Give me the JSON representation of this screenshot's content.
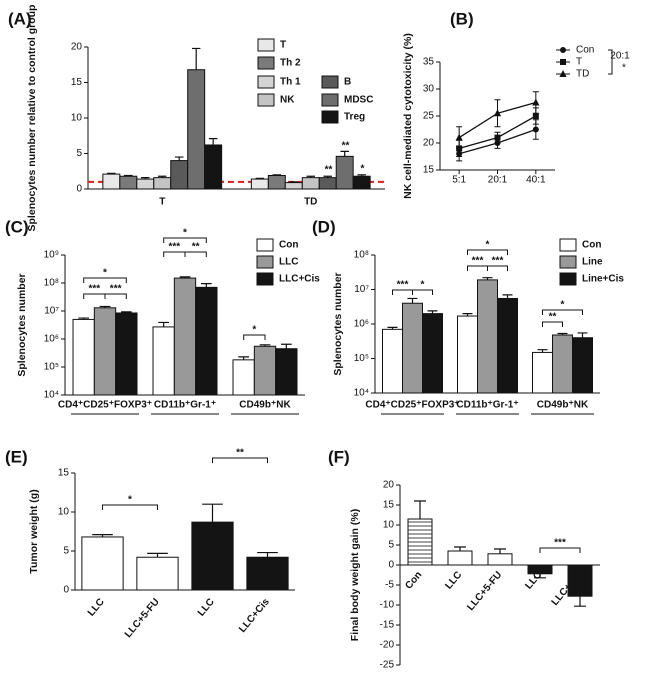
{
  "chart_data": [
    {
      "type": "bar",
      "panel_label": "(A)",
      "y_label": "Splenocytes number relative to control group",
      "categories": [
        "T",
        "TD"
      ],
      "ylim": [
        0,
        20
      ],
      "yticks": [
        0,
        5,
        10,
        15,
        20
      ],
      "reference_line": 1,
      "reference_line_color": "#e41a1c",
      "series": [
        {
          "name": "T",
          "color": "#e8e8e8",
          "values": [
            2.1,
            1.4
          ],
          "errors": [
            0.1,
            0.1
          ]
        },
        {
          "name": "Th 2",
          "color": "#7a7a7a",
          "values": [
            1.8,
            1.9
          ],
          "errors": [
            0.1,
            0.1
          ]
        },
        {
          "name": "Th 1",
          "color": "#d4d4d4",
          "values": [
            1.4,
            0.9
          ],
          "errors": [
            0.2,
            0.1
          ]
        },
        {
          "name": "NK",
          "color": "#c4c4c4",
          "values": [
            1.6,
            1.6
          ],
          "errors": [
            0.2,
            0.2
          ]
        },
        {
          "name": "B",
          "color": "#5a5a5a",
          "values": [
            4.0,
            1.6
          ],
          "errors": [
            0.5,
            0.2
          ]
        },
        {
          "name": "MDSC",
          "color": "#6e6e6e",
          "values": [
            16.8,
            4.6
          ],
          "errors": [
            3.0,
            0.7
          ]
        },
        {
          "name": "Treg",
          "color": "#141414",
          "values": [
            6.2,
            1.8
          ],
          "errors": [
            0.9,
            0.2
          ]
        }
      ],
      "annotations": [
        "**",
        "**",
        "*"
      ]
    },
    {
      "type": "line",
      "panel_label": "(B)",
      "y_label": "NK cell-mediated cytotoxicity (%)",
      "categories": [
        "5:1",
        "20:1",
        "40:1"
      ],
      "ylim": [
        15,
        35
      ],
      "yticks": [
        15,
        20,
        25,
        30,
        35
      ],
      "series": [
        {
          "name": "Con",
          "color": "#111111",
          "marker": "circle",
          "values": [
            18,
            20,
            22.5
          ],
          "errors": [
            1.3,
            1,
            1.8
          ]
        },
        {
          "name": "T",
          "color": "#111111",
          "marker": "square",
          "values": [
            19,
            21,
            25
          ],
          "errors": [
            1.5,
            1,
            1.5
          ]
        },
        {
          "name": "TD",
          "color": "#111111",
          "marker": "triangle",
          "values": [
            21,
            25.5,
            27.5
          ],
          "errors": [
            2,
            2.5,
            2
          ]
        }
      ],
      "annotations": [
        "20:1",
        "*"
      ]
    },
    {
      "type": "bar",
      "panel_label": "(C)",
      "y_label": "Splenocytes number",
      "y_scale": "log",
      "categories": [
        "CD4⁺CD25⁺FOXP3⁺",
        "CD11b⁺Gr-1⁺",
        "CD49b⁺NK"
      ],
      "ylim": [
        10000,
        1000000000
      ],
      "yticks": [
        {
          "value": 10000,
          "label": "10⁴"
        },
        {
          "value": 100000,
          "label": "10⁵"
        },
        {
          "value": 1000000,
          "label": "10⁶"
        },
        {
          "value": 10000000,
          "label": "10⁷"
        },
        {
          "value": 100000000,
          "label": "10⁸"
        },
        {
          "value": 1000000000,
          "label": "10⁹"
        }
      ],
      "series": [
        {
          "name": "Con",
          "color": "#ffffff",
          "values": [
            5000000,
            2700000,
            180000
          ],
          "errors": [
            600000,
            1200000,
            50000
          ]
        },
        {
          "name": "LLC",
          "color": "#999999",
          "values": [
            13000000,
            150000000,
            550000
          ],
          "errors": [
            1500000,
            15000000,
            70000
          ]
        },
        {
          "name": "LLC+Cis",
          "color": "#141414",
          "values": [
            8500000,
            70000000,
            450000
          ],
          "errors": [
            800000,
            25000000,
            200000
          ]
        }
      ],
      "annotations": [
        "*",
        "***",
        "***",
        "*",
        "***",
        "**",
        "*"
      ]
    },
    {
      "type": "bar",
      "panel_label": "(D)",
      "y_label": "Splenocytes number",
      "y_scale": "log",
      "categories": [
        "CD4⁺CD25⁺FOXP3⁺",
        "CD11b⁺Gr-1⁺",
        "CD49b⁺NK"
      ],
      "ylim": [
        10000,
        100000000
      ],
      "yticks": [
        {
          "value": 10000,
          "label": "10⁴"
        },
        {
          "value": 100000,
          "label": "10⁵"
        },
        {
          "value": 1000000,
          "label": "10⁶"
        },
        {
          "value": 10000000,
          "label": "10⁷"
        },
        {
          "value": 100000000,
          "label": "10⁸"
        }
      ],
      "series": [
        {
          "name": "Con",
          "color": "#ffffff",
          "values": [
            700000,
            1700000,
            150000
          ],
          "errors": [
            100000,
            300000,
            30000
          ]
        },
        {
          "name": "Line",
          "color": "#999999",
          "values": [
            4000000,
            19000000,
            480000
          ],
          "errors": [
            1500000,
            3000000,
            50000
          ]
        },
        {
          "name": "Line+Cis",
          "color": "#141414",
          "values": [
            2000000,
            5500000,
            400000
          ],
          "errors": [
            400000,
            1500000,
            150000
          ]
        }
      ],
      "annotations": [
        "***",
        "*",
        "*",
        "***",
        "***",
        "*",
        "**"
      ]
    },
    {
      "type": "bar",
      "panel_label": "(E)",
      "y_label": "Tumor weight (g)",
      "categories": [
        "LLC",
        "LLC+5-FU",
        "LLC",
        "LLC+Cis"
      ],
      "ylim": [
        0,
        15
      ],
      "yticks": [
        0,
        5,
        10,
        15
      ],
      "values": [
        6.8,
        4.2,
        8.7,
        4.2
      ],
      "errors": [
        0.3,
        0.5,
        2.3,
        0.6
      ],
      "colors": [
        "#ffffff",
        "#ffffff",
        "#141414",
        "#141414"
      ],
      "annotations": [
        "*",
        "**"
      ]
    },
    {
      "type": "bar",
      "panel_label": "(F)",
      "y_label": "Final body weight gain (%)",
      "categories": [
        "Con",
        "LLC",
        "LLC+5-FU",
        "LLC",
        "LLC+Cis"
      ],
      "ylim": [
        -25,
        20
      ],
      "yticks": [
        -25,
        -20,
        -15,
        -10,
        -5,
        0,
        5,
        10,
        15,
        20
      ],
      "values": [
        11.5,
        3.5,
        2.8,
        -2.2,
        -7.8
      ],
      "errors": [
        4.5,
        1.0,
        1.2,
        1.0,
        2.5
      ],
      "colors": [
        "#ffffff",
        "#ffffff",
        "#ffffff",
        "#141414",
        "#141414"
      ],
      "hatch": [
        true,
        false,
        false,
        false,
        false
      ],
      "annotations": [
        "***"
      ]
    }
  ]
}
